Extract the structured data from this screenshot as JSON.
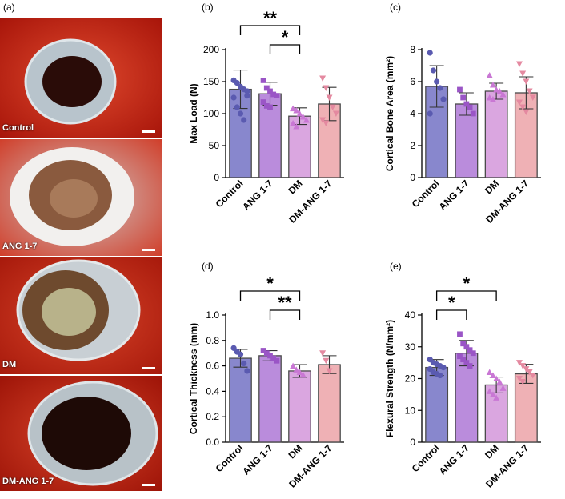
{
  "panel_labels": [
    "(a)",
    "(b)",
    "(c)",
    "(d)",
    "(e)"
  ],
  "photos": [
    {
      "label": "Control"
    },
    {
      "label": "ANG 1-7"
    },
    {
      "label": "DM"
    },
    {
      "label": "DM-ANG 1-7"
    }
  ],
  "colors": {
    "Control": "#7372c4",
    "ANG 1-7": "#ae78d6",
    "DM": "#d396db",
    "DM-ANG 1-7": "#eca3a8",
    "Control_dot": "#5a5ab0",
    "ANG 1-7_dot": "#9a55c6",
    "DM_dot": "#c977d4",
    "DM-ANG 1-7_dot": "#e489a0"
  },
  "chart_data": [
    {
      "id": "b",
      "type": "bar",
      "categories": [
        "Control",
        "ANG 1-7",
        "DM",
        "DM-ANG 1-7"
      ],
      "values": [
        138,
        131,
        96,
        115
      ],
      "errors": [
        30,
        18,
        13,
        26
      ],
      "points": [
        [
          152,
          148,
          142,
          138,
          135,
          125,
          110,
          100,
          90,
          128
        ],
        [
          152,
          140,
          135,
          130,
          128,
          118,
          112,
          110
        ],
        [
          108,
          105,
          100,
          95,
          90,
          85,
          80
        ],
        [
          155,
          140,
          125,
          110,
          100,
          90,
          85
        ]
      ],
      "xlabel": "",
      "ylabel": "Max  Load (N)",
      "ylim": [
        0,
        200
      ],
      "yticks": [
        0,
        50,
        100,
        150,
        200
      ],
      "significance": [
        {
          "from": 0,
          "to": 2,
          "label": "**"
        },
        {
          "from": 1,
          "to": 2,
          "label": "*"
        }
      ]
    },
    {
      "id": "c",
      "type": "bar",
      "categories": [
        "Control",
        "ANG 1-7",
        "DM",
        "DM-ANG 1-7"
      ],
      "values": [
        5.7,
        4.6,
        5.4,
        5.3
      ],
      "errors": [
        1.3,
        0.7,
        0.5,
        1.0
      ],
      "points": [
        [
          7.8,
          6.7,
          6.0,
          5.6,
          4.9,
          4.0
        ],
        [
          5.5,
          5.0,
          4.6,
          4.4,
          4.0
        ],
        [
          6.4,
          5.8,
          5.5,
          5.4,
          5.2,
          5.0,
          4.9
        ],
        [
          7.1,
          6.5,
          6.0,
          5.4,
          5.0,
          4.7,
          4.4,
          4.1
        ]
      ],
      "xlabel": "",
      "ylabel": "Cortical Bone Area (mm²)",
      "ylim": [
        0,
        8
      ],
      "yticks": [
        0,
        2,
        4,
        6,
        8
      ],
      "significance": []
    },
    {
      "id": "d",
      "type": "bar",
      "categories": [
        "Control",
        "ANG 1-7",
        "DM",
        "DM-ANG 1-7"
      ],
      "values": [
        0.66,
        0.68,
        0.56,
        0.61
      ],
      "errors": [
        0.07,
        0.04,
        0.05,
        0.07
      ],
      "points": [
        [
          0.74,
          0.71,
          0.69,
          0.62,
          0.56
        ],
        [
          0.72,
          0.7,
          0.68,
          0.66,
          0.64
        ],
        [
          0.6,
          0.57,
          0.55,
          0.53
        ],
        [
          0.7,
          0.64,
          0.56
        ]
      ],
      "xlabel": "",
      "ylabel": "Cortical Thickness (mm)",
      "ylim": [
        0,
        1.0
      ],
      "yticks": [
        "0.0",
        "0.2",
        "0.4",
        "0.6",
        "0.8",
        "1.0"
      ],
      "significance": [
        {
          "from": 0,
          "to": 2,
          "label": "*"
        },
        {
          "from": 1,
          "to": 2,
          "label": "**"
        }
      ]
    },
    {
      "id": "e",
      "type": "bar",
      "categories": [
        "Control",
        "ANG 1-7",
        "DM",
        "DM-ANG 1-7"
      ],
      "values": [
        23.5,
        28,
        18,
        21.5
      ],
      "errors": [
        2.5,
        4,
        2.5,
        3
      ],
      "points": [
        [
          26,
          25,
          24.5,
          24,
          23.5,
          23,
          22,
          21.5,
          21
        ],
        [
          34,
          31,
          30,
          29,
          28,
          27,
          26,
          25,
          24
        ],
        [
          22,
          21,
          20,
          19,
          17,
          16,
          15,
          14
        ],
        [
          25,
          24,
          23,
          22,
          21,
          20,
          19
        ]
      ],
      "xlabel": "",
      "ylabel": "Flexural Strength (N/mm²)",
      "ylim": [
        0,
        40
      ],
      "yticks": [
        0,
        10,
        20,
        30,
        40
      ],
      "significance": [
        {
          "from": 0,
          "to": 1,
          "label": "*"
        },
        {
          "from": 0,
          "to": 2,
          "label": "*"
        }
      ]
    }
  ]
}
